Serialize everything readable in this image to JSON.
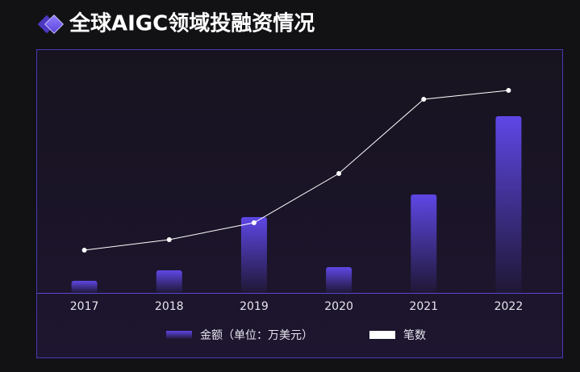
{
  "chart_data": {
    "type": "bar",
    "title": "全球AIGC领域投融资情况",
    "categories": [
      "2017",
      "2018",
      "2019",
      "2020",
      "2021",
      "2022"
    ],
    "series": [
      {
        "name": "金额（单位：万美元）",
        "type": "bar",
        "color": "#5b45e0",
        "values": [
          15,
          28,
          94,
          32,
          122,
          219
        ]
      },
      {
        "name": "笔数",
        "type": "line",
        "color": "#ffffff",
        "values": [
          53,
          66,
          87,
          148,
          240,
          251
        ]
      }
    ],
    "ylim": [
      0,
      300
    ]
  }
}
